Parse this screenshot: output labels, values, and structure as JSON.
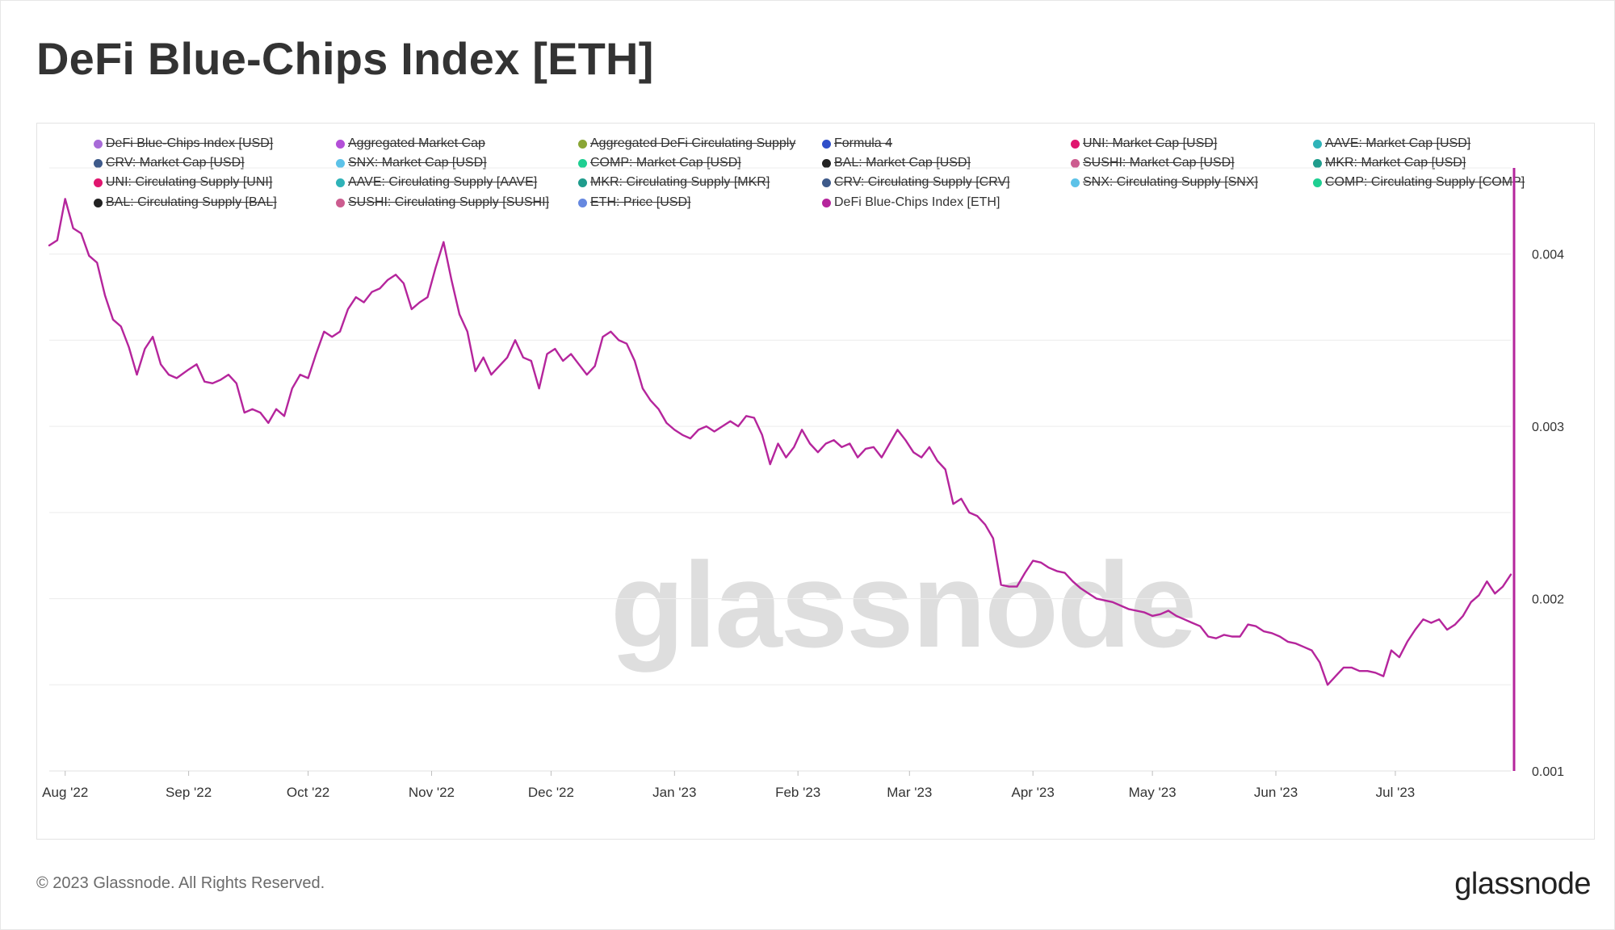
{
  "title": "DeFi Blue-Chips Index [ETH]",
  "footer": {
    "copyright": "© 2023 Glassnode. All Rights Reserved.",
    "logo": "glassnode"
  },
  "watermark": "glassnode",
  "legend": [
    {
      "label": "DeFi Blue-Chips Index [USD]",
      "color": "#a86bd8",
      "active": false
    },
    {
      "label": "Aggregated Market Cap",
      "color": "#b34fd8",
      "active": false
    },
    {
      "label": "Aggregated DeFi Circulating Supply",
      "color": "#8aa635",
      "active": false
    },
    {
      "label": "Formula 4",
      "color": "#2f4fc9",
      "active": false
    },
    {
      "label": "UNI: Market Cap [USD]",
      "color": "#e0166f",
      "active": false
    },
    {
      "label": "AAVE: Market Cap [USD]",
      "color": "#2fb3b8",
      "active": false
    },
    {
      "label": "CRV: Market Cap [USD]",
      "color": "#3e5a8a",
      "active": false
    },
    {
      "label": "SNX: Market Cap [USD]",
      "color": "#5cc2e8",
      "active": false
    },
    {
      "label": "COMP: Market Cap [USD]",
      "color": "#1fcf92",
      "active": false
    },
    {
      "label": "BAL: Market Cap [USD]",
      "color": "#222222",
      "active": false
    },
    {
      "label": "SUSHI: Market Cap [USD]",
      "color": "#cc5c8f",
      "active": false
    },
    {
      "label": "MKR: Market Cap [USD]",
      "color": "#1f9c8c",
      "active": false
    },
    {
      "label": "UNI: Circulating Supply [UNI]",
      "color": "#e0166f",
      "active": false
    },
    {
      "label": "AAVE: Circulating Supply [AAVE]",
      "color": "#2fb3b8",
      "active": false
    },
    {
      "label": "MKR: Circulating Supply [MKR]",
      "color": "#1f9c8c",
      "active": false
    },
    {
      "label": "CRV: Circulating Supply [CRV]",
      "color": "#3e5a8a",
      "active": false
    },
    {
      "label": "SNX: Circulating Supply [SNX]",
      "color": "#5cc2e8",
      "active": false
    },
    {
      "label": "COMP: Circulating Supply [COMP]",
      "color": "#1fcf92",
      "active": false
    },
    {
      "label": "BAL: Circulating Supply [BAL]",
      "color": "#222222",
      "active": false
    },
    {
      "label": "SUSHI: Circulating Supply [SUSHI]",
      "color": "#cc5c8f",
      "active": false
    },
    {
      "label": "ETH: Price [USD]",
      "color": "#6688e0",
      "active": false
    },
    {
      "label": "DeFi Blue-Chips Index [ETH]",
      "color": "#b5259c",
      "active": true
    }
  ],
  "chart_data": {
    "type": "line",
    "title": "DeFi Blue-Chips Index [ETH]",
    "xlabel": "",
    "ylabel": "",
    "x_range": [
      "2022-07-28",
      "2023-07-30"
    ],
    "ylim": [
      0.001,
      0.0045
    ],
    "y_axis_side": "right",
    "y_ticks": [
      {
        "value": 0.004,
        "label": "0.004"
      },
      {
        "value": 0.003,
        "label": "0.003"
      },
      {
        "value": 0.002,
        "label": "0.002"
      },
      {
        "value": 0.001,
        "label": "0.001"
      }
    ],
    "x_ticks": [
      {
        "date": "2022-08-01",
        "label": "Aug '22"
      },
      {
        "date": "2022-09-01",
        "label": "Sep '22"
      },
      {
        "date": "2022-10-01",
        "label": "Oct '22"
      },
      {
        "date": "2022-11-01",
        "label": "Nov '22"
      },
      {
        "date": "2022-12-01",
        "label": "Dec '22"
      },
      {
        "date": "2023-01-01",
        "label": "Jan '23"
      },
      {
        "date": "2023-02-01",
        "label": "Feb '23"
      },
      {
        "date": "2023-03-01",
        "label": "Mar '23"
      },
      {
        "date": "2023-04-01",
        "label": "Apr '23"
      },
      {
        "date": "2023-05-01",
        "label": "May '23"
      },
      {
        "date": "2023-06-01",
        "label": "Jun '23"
      },
      {
        "date": "2023-07-01",
        "label": "Jul '23"
      }
    ],
    "grid": true,
    "legend": "top",
    "series": [
      {
        "name": "DeFi Blue-Chips Index [ETH]",
        "color": "#b5259c",
        "points": [
          [
            "2022-07-28",
            0.00405
          ],
          [
            "2022-07-30",
            0.00408
          ],
          [
            "2022-08-01",
            0.00432
          ],
          [
            "2022-08-03",
            0.00415
          ],
          [
            "2022-08-05",
            0.00412
          ],
          [
            "2022-08-07",
            0.00399
          ],
          [
            "2022-08-09",
            0.00395
          ],
          [
            "2022-08-11",
            0.00376
          ],
          [
            "2022-08-13",
            0.00362
          ],
          [
            "2022-08-15",
            0.00358
          ],
          [
            "2022-08-17",
            0.00346
          ],
          [
            "2022-08-19",
            0.0033
          ],
          [
            "2022-08-21",
            0.00345
          ],
          [
            "2022-08-23",
            0.00352
          ],
          [
            "2022-08-25",
            0.00336
          ],
          [
            "2022-08-27",
            0.0033
          ],
          [
            "2022-08-29",
            0.00328
          ],
          [
            "2022-09-01",
            0.00333
          ],
          [
            "2022-09-03",
            0.00336
          ],
          [
            "2022-09-05",
            0.00326
          ],
          [
            "2022-09-07",
            0.00325
          ],
          [
            "2022-09-09",
            0.00327
          ],
          [
            "2022-09-11",
            0.0033
          ],
          [
            "2022-09-13",
            0.00325
          ],
          [
            "2022-09-15",
            0.00308
          ],
          [
            "2022-09-17",
            0.0031
          ],
          [
            "2022-09-19",
            0.00308
          ],
          [
            "2022-09-21",
            0.00302
          ],
          [
            "2022-09-23",
            0.0031
          ],
          [
            "2022-09-25",
            0.00306
          ],
          [
            "2022-09-27",
            0.00322
          ],
          [
            "2022-09-29",
            0.0033
          ],
          [
            "2022-10-01",
            0.00328
          ],
          [
            "2022-10-03",
            0.00342
          ],
          [
            "2022-10-05",
            0.00355
          ],
          [
            "2022-10-07",
            0.00352
          ],
          [
            "2022-10-09",
            0.00355
          ],
          [
            "2022-10-11",
            0.00368
          ],
          [
            "2022-10-13",
            0.00375
          ],
          [
            "2022-10-15",
            0.00372
          ],
          [
            "2022-10-17",
            0.00378
          ],
          [
            "2022-10-19",
            0.0038
          ],
          [
            "2022-10-21",
            0.00385
          ],
          [
            "2022-10-23",
            0.00388
          ],
          [
            "2022-10-25",
            0.00383
          ],
          [
            "2022-10-27",
            0.00368
          ],
          [
            "2022-10-29",
            0.00372
          ],
          [
            "2022-10-31",
            0.00375
          ],
          [
            "2022-11-02",
            0.00392
          ],
          [
            "2022-11-04",
            0.00407
          ],
          [
            "2022-11-06",
            0.00385
          ],
          [
            "2022-11-08",
            0.00365
          ],
          [
            "2022-11-10",
            0.00355
          ],
          [
            "2022-11-12",
            0.00332
          ],
          [
            "2022-11-14",
            0.0034
          ],
          [
            "2022-11-16",
            0.0033
          ],
          [
            "2022-11-18",
            0.00335
          ],
          [
            "2022-11-20",
            0.0034
          ],
          [
            "2022-11-22",
            0.0035
          ],
          [
            "2022-11-24",
            0.0034
          ],
          [
            "2022-11-26",
            0.00338
          ],
          [
            "2022-11-28",
            0.00322
          ],
          [
            "2022-11-30",
            0.00342
          ],
          [
            "2022-12-02",
            0.00345
          ],
          [
            "2022-12-04",
            0.00338
          ],
          [
            "2022-12-06",
            0.00342
          ],
          [
            "2022-12-08",
            0.00336
          ],
          [
            "2022-12-10",
            0.0033
          ],
          [
            "2022-12-12",
            0.00335
          ],
          [
            "2022-12-14",
            0.00352
          ],
          [
            "2022-12-16",
            0.00355
          ],
          [
            "2022-12-18",
            0.0035
          ],
          [
            "2022-12-20",
            0.00348
          ],
          [
            "2022-12-22",
            0.00338
          ],
          [
            "2022-12-24",
            0.00322
          ],
          [
            "2022-12-26",
            0.00315
          ],
          [
            "2022-12-28",
            0.0031
          ],
          [
            "2022-12-30",
            0.00302
          ],
          [
            "2023-01-01",
            0.00298
          ],
          [
            "2023-01-03",
            0.00295
          ],
          [
            "2023-01-05",
            0.00293
          ],
          [
            "2023-01-07",
            0.00298
          ],
          [
            "2023-01-09",
            0.003
          ],
          [
            "2023-01-11",
            0.00297
          ],
          [
            "2023-01-13",
            0.003
          ],
          [
            "2023-01-15",
            0.00303
          ],
          [
            "2023-01-17",
            0.003
          ],
          [
            "2023-01-19",
            0.00306
          ],
          [
            "2023-01-21",
            0.00305
          ],
          [
            "2023-01-23",
            0.00295
          ],
          [
            "2023-01-25",
            0.00278
          ],
          [
            "2023-01-27",
            0.0029
          ],
          [
            "2023-01-29",
            0.00282
          ],
          [
            "2023-01-31",
            0.00288
          ],
          [
            "2023-02-02",
            0.00298
          ],
          [
            "2023-02-04",
            0.0029
          ],
          [
            "2023-02-06",
            0.00285
          ],
          [
            "2023-02-08",
            0.0029
          ],
          [
            "2023-02-10",
            0.00292
          ],
          [
            "2023-02-12",
            0.00288
          ],
          [
            "2023-02-14",
            0.0029
          ],
          [
            "2023-02-16",
            0.00282
          ],
          [
            "2023-02-18",
            0.00287
          ],
          [
            "2023-02-20",
            0.00288
          ],
          [
            "2023-02-22",
            0.00282
          ],
          [
            "2023-02-24",
            0.0029
          ],
          [
            "2023-02-26",
            0.00298
          ],
          [
            "2023-02-28",
            0.00292
          ],
          [
            "2023-03-02",
            0.00285
          ],
          [
            "2023-03-04",
            0.00282
          ],
          [
            "2023-03-06",
            0.00288
          ],
          [
            "2023-03-08",
            0.0028
          ],
          [
            "2023-03-10",
            0.00275
          ],
          [
            "2023-03-12",
            0.00255
          ],
          [
            "2023-03-14",
            0.00258
          ],
          [
            "2023-03-16",
            0.0025
          ],
          [
            "2023-03-18",
            0.00248
          ],
          [
            "2023-03-20",
            0.00243
          ],
          [
            "2023-03-22",
            0.00235
          ],
          [
            "2023-03-24",
            0.00208
          ],
          [
            "2023-03-26",
            0.00207
          ],
          [
            "2023-03-28",
            0.00207
          ],
          [
            "2023-03-30",
            0.00215
          ],
          [
            "2023-04-01",
            0.00222
          ],
          [
            "2023-04-03",
            0.00221
          ],
          [
            "2023-04-05",
            0.00218
          ],
          [
            "2023-04-07",
            0.00216
          ],
          [
            "2023-04-09",
            0.00215
          ],
          [
            "2023-04-11",
            0.0021
          ],
          [
            "2023-04-13",
            0.00206
          ],
          [
            "2023-04-15",
            0.00203
          ],
          [
            "2023-04-17",
            0.002
          ],
          [
            "2023-04-19",
            0.00199
          ],
          [
            "2023-04-21",
            0.00198
          ],
          [
            "2023-04-23",
            0.00196
          ],
          [
            "2023-04-25",
            0.00194
          ],
          [
            "2023-04-27",
            0.00193
          ],
          [
            "2023-04-29",
            0.00192
          ],
          [
            "2023-05-01",
            0.0019
          ],
          [
            "2023-05-03",
            0.00191
          ],
          [
            "2023-05-05",
            0.00193
          ],
          [
            "2023-05-07",
            0.0019
          ],
          [
            "2023-05-09",
            0.00188
          ],
          [
            "2023-05-11",
            0.00186
          ],
          [
            "2023-05-13",
            0.00184
          ],
          [
            "2023-05-15",
            0.00178
          ],
          [
            "2023-05-17",
            0.00177
          ],
          [
            "2023-05-19",
            0.00179
          ],
          [
            "2023-05-21",
            0.00178
          ],
          [
            "2023-05-23",
            0.00178
          ],
          [
            "2023-05-25",
            0.00185
          ],
          [
            "2023-05-27",
            0.00184
          ],
          [
            "2023-05-29",
            0.00181
          ],
          [
            "2023-05-31",
            0.0018
          ],
          [
            "2023-06-02",
            0.00178
          ],
          [
            "2023-06-04",
            0.00175
          ],
          [
            "2023-06-06",
            0.00174
          ],
          [
            "2023-06-08",
            0.00172
          ],
          [
            "2023-06-10",
            0.0017
          ],
          [
            "2023-06-12",
            0.00163
          ],
          [
            "2023-06-14",
            0.0015
          ],
          [
            "2023-06-16",
            0.00155
          ],
          [
            "2023-06-18",
            0.0016
          ],
          [
            "2023-06-20",
            0.0016
          ],
          [
            "2023-06-22",
            0.00158
          ],
          [
            "2023-06-24",
            0.00158
          ],
          [
            "2023-06-26",
            0.00157
          ],
          [
            "2023-06-28",
            0.00155
          ],
          [
            "2023-06-30",
            0.0017
          ],
          [
            "2023-07-02",
            0.00166
          ],
          [
            "2023-07-04",
            0.00175
          ],
          [
            "2023-07-06",
            0.00182
          ],
          [
            "2023-07-08",
            0.00188
          ],
          [
            "2023-07-10",
            0.00186
          ],
          [
            "2023-07-12",
            0.00188
          ],
          [
            "2023-07-14",
            0.00182
          ],
          [
            "2023-07-16",
            0.00185
          ],
          [
            "2023-07-18",
            0.0019
          ],
          [
            "2023-07-20",
            0.00198
          ],
          [
            "2023-07-22",
            0.00202
          ],
          [
            "2023-07-24",
            0.0021
          ],
          [
            "2023-07-26",
            0.00203
          ],
          [
            "2023-07-28",
            0.00207
          ],
          [
            "2023-07-30",
            0.00214
          ]
        ]
      }
    ]
  }
}
